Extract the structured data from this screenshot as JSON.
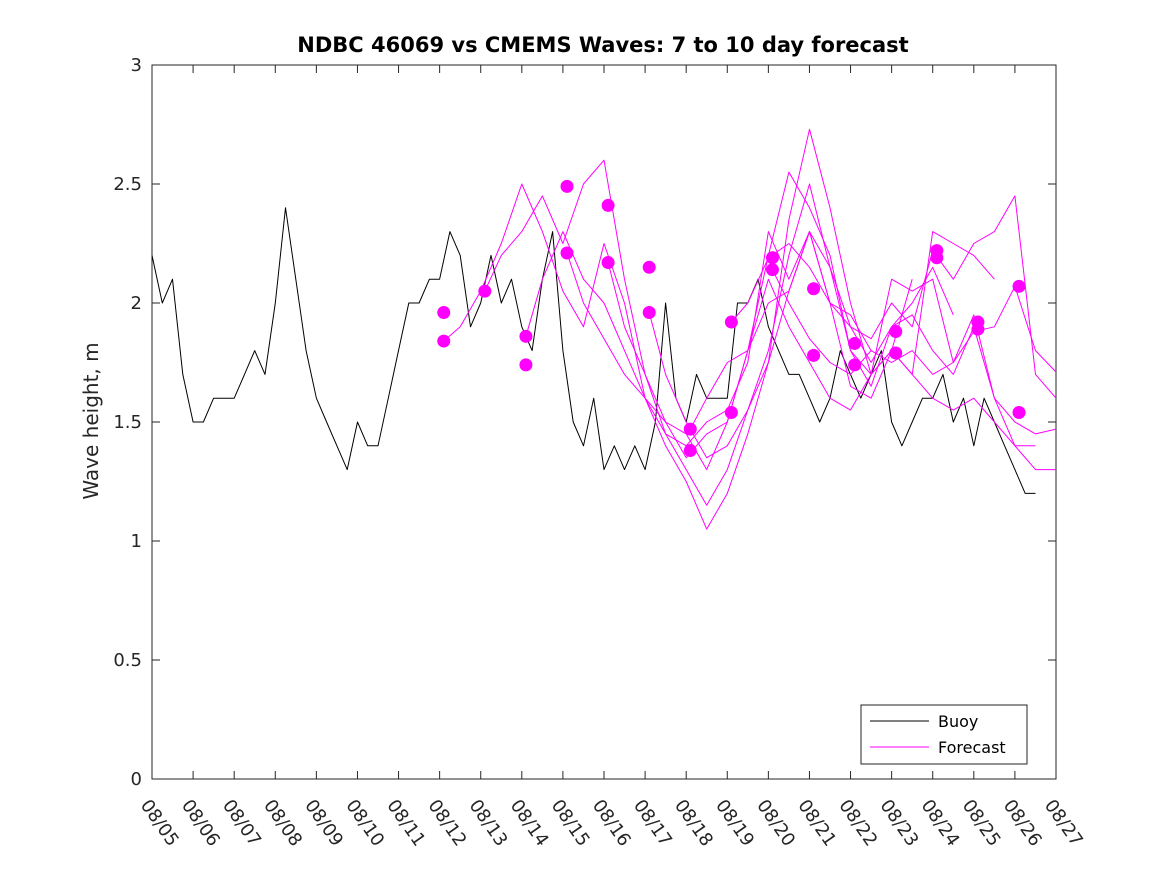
{
  "chart_data": {
    "type": "line",
    "title": "NDBC 46069 vs CMEMS Waves: 7 to 10 day forecast",
    "xlabel": "",
    "ylabel": "Wave height, m",
    "xlim": [
      0,
      22
    ],
    "ylim": [
      0,
      3
    ],
    "x_ticks": [
      0,
      1,
      2,
      3,
      4,
      5,
      6,
      7,
      8,
      9,
      10,
      11,
      12,
      13,
      14,
      15,
      16,
      17,
      18,
      19,
      20,
      21,
      22
    ],
    "x_tick_labels": [
      "08/05",
      "08/06",
      "08/07",
      "08/08",
      "08/09",
      "08/10",
      "08/11",
      "08/12",
      "08/13",
      "08/14",
      "08/15",
      "08/16",
      "08/17",
      "08/18",
      "08/19",
      "08/20",
      "08/21",
      "08/22",
      "08/23",
      "08/24",
      "08/25",
      "08/26",
      "08/27"
    ],
    "y_ticks": [
      0,
      0.5,
      1,
      1.5,
      2,
      2.5,
      3
    ],
    "y_tick_labels": [
      "0",
      "0.5",
      "1",
      "1.5",
      "2",
      "2.5",
      "3"
    ],
    "grid": false,
    "legend": {
      "position": "bottom-right",
      "entries": [
        "Buoy",
        "Forecast"
      ]
    },
    "colors": {
      "buoy": "#000000",
      "forecast": "#ff00ff"
    },
    "series": [
      {
        "name": "Buoy",
        "color": "#000000",
        "x": [
          0,
          0.25,
          0.5,
          0.75,
          1.0,
          1.25,
          1.5,
          1.75,
          2.0,
          2.25,
          2.5,
          2.75,
          3.0,
          3.25,
          3.5,
          3.75,
          4.0,
          4.25,
          4.5,
          4.75,
          5.0,
          5.25,
          5.5,
          5.75,
          6.0,
          6.25,
          6.5,
          6.75,
          7.0,
          7.25,
          7.5,
          7.75,
          8.0,
          8.25,
          8.5,
          8.75,
          9.0,
          9.25,
          9.5,
          9.75,
          10.0,
          10.25,
          10.5,
          10.75,
          11.0,
          11.25,
          11.5,
          11.75,
          12.0,
          12.25,
          12.5,
          12.75,
          13.0,
          13.25,
          13.5,
          13.75,
          14.0,
          14.25,
          14.5,
          14.75,
          15.0,
          15.25,
          15.5,
          15.75,
          16.0,
          16.25,
          16.5,
          16.75,
          17.0,
          17.25,
          17.5,
          17.75,
          18.0,
          18.25,
          18.5,
          18.75,
          19.0,
          19.25,
          19.5,
          19.75,
          20.0,
          20.25,
          20.5,
          20.75,
          21.0,
          21.25,
          21.5
        ],
        "values": [
          2.2,
          2.0,
          2.1,
          1.7,
          1.5,
          1.5,
          1.6,
          1.6,
          1.6,
          1.7,
          1.8,
          1.7,
          2.0,
          2.4,
          2.1,
          1.8,
          1.6,
          1.5,
          1.4,
          1.3,
          1.5,
          1.4,
          1.4,
          1.6,
          1.8,
          2.0,
          2.0,
          2.1,
          2.1,
          2.3,
          2.2,
          1.9,
          2.0,
          2.2,
          2.0,
          2.1,
          1.9,
          1.8,
          2.1,
          2.3,
          1.8,
          1.5,
          1.4,
          1.6,
          1.3,
          1.4,
          1.3,
          1.4,
          1.3,
          1.5,
          2.0,
          1.6,
          1.5,
          1.7,
          1.6,
          1.6,
          1.6,
          2.0,
          2.0,
          2.1,
          1.9,
          1.8,
          1.7,
          1.7,
          1.6,
          1.5,
          1.6,
          1.8,
          1.7,
          1.6,
          1.7,
          1.8,
          1.5,
          1.4,
          1.5,
          1.6,
          1.6,
          1.7,
          1.5,
          1.6,
          1.4,
          1.6,
          1.5,
          1.4,
          1.3,
          1.2,
          1.2
        ]
      },
      {
        "name": "Forecast 1",
        "color": "#ff00ff",
        "x": [
          7.1,
          7.5,
          8.0,
          8.5,
          9.0,
          9.5,
          10.0,
          10.5,
          11.0,
          11.5,
          12.0,
          12.5,
          13.0,
          13.5,
          14.0,
          14.5,
          15.0,
          15.5,
          16.0,
          16.5,
          17.0,
          17.5
        ],
        "values": [
          1.84,
          1.9,
          2.05,
          2.25,
          2.5,
          2.3,
          2.05,
          1.9,
          2.25,
          2.0,
          1.6,
          1.4,
          1.25,
          1.05,
          1.2,
          1.45,
          1.75,
          2.05,
          2.3,
          2.0,
          1.95,
          1.8
        ]
      },
      {
        "name": "Forecast 2",
        "color": "#ff00ff",
        "x": [
          8.1,
          8.5,
          9.0,
          9.5,
          10.0,
          10.5,
          11.0,
          11.5,
          12.0,
          12.5,
          13.0,
          13.5,
          14.0,
          14.5,
          15.0,
          15.5,
          16.0,
          16.5,
          17.0,
          17.5,
          18.0,
          18.5
        ],
        "values": [
          2.05,
          2.2,
          2.3,
          2.45,
          2.25,
          2.5,
          2.6,
          2.1,
          1.7,
          1.45,
          1.3,
          1.15,
          1.3,
          1.55,
          1.75,
          2.35,
          2.73,
          2.4,
          2.0,
          1.7,
          1.8,
          2.1
        ]
      },
      {
        "name": "Forecast 3",
        "color": "#ff00ff",
        "x": [
          9.1,
          9.5,
          10.0,
          10.5,
          11.0,
          11.5,
          12.0,
          12.5,
          13.0,
          13.5,
          14.0,
          14.5,
          15.0,
          15.5,
          16.0,
          16.5,
          17.0,
          17.5,
          18.0,
          18.5,
          19.0,
          19.5
        ],
        "values": [
          1.86,
          2.1,
          2.3,
          2.1,
          2.0,
          1.8,
          1.6,
          1.5,
          1.45,
          1.3,
          1.5,
          1.8,
          2.2,
          2.55,
          2.4,
          2.2,
          1.8,
          1.65,
          1.9,
          2.0,
          2.15,
          1.95
        ]
      },
      {
        "name": "Forecast 4",
        "color": "#ff00ff",
        "x": [
          10.1,
          10.5,
          11.0,
          11.5,
          12.0,
          12.5,
          13.0,
          13.5,
          14.0,
          14.5,
          15.0,
          15.5,
          16.0,
          16.5,
          17.0,
          17.5,
          18.0,
          18.5,
          19.0,
          19.5,
          20.0,
          20.5
        ],
        "values": [
          2.21,
          2.0,
          1.85,
          1.7,
          1.6,
          1.45,
          1.4,
          1.5,
          1.55,
          1.75,
          2.3,
          2.1,
          2.3,
          2.0,
          1.65,
          1.6,
          1.8,
          1.7,
          2.3,
          2.25,
          2.2,
          2.1
        ]
      },
      {
        "name": "Forecast 5",
        "color": "#ff00ff",
        "x": [
          11.1,
          11.5,
          12.0,
          12.5,
          13.0,
          13.5,
          14.0,
          14.5,
          15.0,
          15.5,
          16.0,
          16.5,
          17.0,
          17.5,
          18.0,
          18.5,
          19.0,
          19.5,
          20.0,
          20.5,
          21.0,
          21.5
        ],
        "values": [
          2.17,
          1.9,
          1.7,
          1.5,
          1.35,
          1.45,
          1.5,
          1.8,
          2.1,
          1.9,
          1.75,
          1.6,
          1.55,
          1.7,
          1.8,
          1.7,
          1.6,
          1.55,
          1.6,
          1.5,
          1.4,
          1.4
        ]
      },
      {
        "name": "Forecast 6",
        "color": "#ff00ff",
        "x": [
          12.1,
          12.5,
          13.0,
          13.5,
          14.0,
          14.5,
          15.0,
          15.5,
          16.0,
          16.5,
          17.0,
          17.5,
          18.0,
          18.5,
          19.0,
          19.5,
          20.0,
          20.5,
          21.0,
          21.5,
          22.0
        ],
        "values": [
          1.96,
          1.7,
          1.5,
          1.35,
          1.4,
          1.55,
          1.8,
          2.2,
          2.5,
          2.15,
          1.8,
          1.7,
          2.1,
          2.05,
          2.1,
          1.75,
          1.95,
          1.6,
          1.5,
          1.45,
          1.47
        ]
      },
      {
        "name": "Forecast 7",
        "color": "#ff00ff",
        "x": [
          13.1,
          13.5,
          14.0,
          14.5,
          15.0,
          15.5,
          16.0,
          16.5,
          17.0,
          17.5,
          18.0,
          18.5,
          19.0,
          19.5,
          20.0,
          20.5,
          21.0,
          21.5,
          22.0
        ],
        "values": [
          1.47,
          1.6,
          1.75,
          1.8,
          2.0,
          2.05,
          2.3,
          2.15,
          1.9,
          1.75,
          1.9,
          1.95,
          1.8,
          1.7,
          1.9,
          1.6,
          1.4,
          1.3,
          1.3
        ]
      },
      {
        "name": "Forecast 8",
        "color": "#ff00ff",
        "x": [
          14.1,
          14.5,
          15.0,
          15.5,
          16.0,
          16.5,
          17.0,
          17.5,
          18.0,
          18.5,
          19.0,
          19.5,
          20.0,
          20.5,
          21.0,
          21.5,
          22.0
        ],
        "values": [
          1.92,
          2.0,
          2.19,
          2.25,
          2.15,
          2.0,
          1.9,
          1.85,
          2.0,
          1.9,
          2.22,
          2.1,
          2.25,
          2.3,
          2.45,
          1.7,
          1.6
        ]
      },
      {
        "name": "Forecast 9",
        "color": "#ff00ff",
        "x": [
          15.1,
          15.5,
          16.0,
          16.5,
          17.0,
          17.5,
          18.0,
          18.5,
          19.0,
          19.5,
          20.0,
          20.5,
          21.0,
          21.5,
          22.0
        ],
        "values": [
          2.14,
          2.0,
          1.85,
          1.75,
          1.7,
          1.8,
          1.75,
          1.8,
          1.7,
          1.75,
          1.88,
          1.9,
          2.07,
          1.8,
          1.71
        ]
      }
    ],
    "markers": {
      "color": "#ff00ff",
      "x": [
        7.1,
        7.1,
        8.1,
        9.1,
        9.1,
        10.1,
        10.1,
        11.1,
        11.1,
        12.1,
        12.1,
        13.1,
        13.1,
        14.1,
        14.1,
        15.1,
        15.1,
        16.1,
        16.1,
        17.1,
        17.1,
        18.1,
        18.1,
        19.1,
        19.1,
        20.1,
        20.1,
        21.1,
        21.1
      ],
      "values": [
        1.96,
        1.84,
        2.05,
        1.86,
        1.74,
        2.49,
        2.21,
        2.41,
        2.17,
        2.15,
        1.96,
        1.47,
        1.38,
        1.92,
        1.54,
        2.19,
        2.14,
        2.06,
        1.78,
        1.83,
        1.74,
        1.88,
        1.79,
        2.22,
        2.19,
        1.92,
        1.89,
        2.07,
        1.54
      ]
    }
  }
}
